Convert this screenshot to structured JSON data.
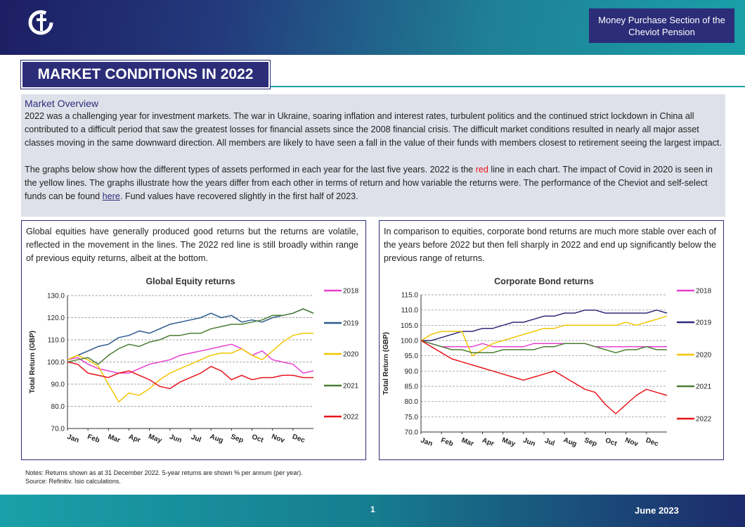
{
  "header": {
    "section": "Money Purchase Section of the Cheviot Pension",
    "title": "MARKET CONDITIONS IN 2022"
  },
  "overview": {
    "heading": "Market Overview",
    "paragraph_1": "2022 was a challenging year for investment markets. The war in Ukraine, soaring inflation and interest rates, turbulent politics and the continued strict lockdown in China all contributed to a difficult period that saw the greatest losses for financial assets since the 2008 financial crisis. The difficult market conditions resulted in nearly all major asset classes moving in the same downward direction. All members are likely to have seen a fall in the value of their funds with members closest to retirement seeing the largest impact.",
    "paragraph_2": [
      "The graphs below show how the different types of assets performed in each year for the last five years. 2022 is the ",
      "red",
      " line in each chart. The impact of Covid in 2020 is seen in the yellow lines. The graphs illustrate how the years differ from each other in terms of return and how variable the returns were. The performance of the Cheviot and self-select funds can be found ",
      "here",
      ". Fund values have recovered slightly in the first half of 2023."
    ]
  },
  "chart_data": [
    {
      "type": "line",
      "description": "Global equities have generally produced good returns but the returns are volatile, reflected in the movement in the lines. The 2022 red line is still broadly within range of previous equity returns, albeit at the bottom.",
      "title": "Global Equity returns",
      "y_label": "Total Return (GBP)",
      "xlim": [
        0,
        12
      ],
      "xticks": [
        {
          "value": 0,
          "label": "Jan"
        },
        {
          "value": 1,
          "label": "Feb"
        },
        {
          "value": 2,
          "label": "Mar"
        },
        {
          "value": 3,
          "label": "Apr"
        },
        {
          "value": 4,
          "label": "May"
        },
        {
          "value": 5,
          "label": "Jun"
        },
        {
          "value": 6,
          "label": "Jul"
        },
        {
          "value": 7,
          "label": "Aug"
        },
        {
          "value": 8,
          "label": "Sep"
        },
        {
          "value": 9,
          "label": "Oct"
        },
        {
          "value": 10,
          "label": "Nov"
        },
        {
          "value": 11,
          "label": "Dec"
        }
      ],
      "x": [
        0,
        0.5,
        1,
        1.5,
        2,
        2.5,
        3,
        3.5,
        4,
        4.5,
        5,
        5.5,
        6,
        6.5,
        7,
        7.5,
        8,
        8.5,
        9,
        9.5,
        10,
        10.5,
        11,
        11.5,
        12
      ],
      "ylim": [
        70,
        130
      ],
      "yticks": [
        {
          "value": 70,
          "label": "70.0"
        },
        {
          "value": 80,
          "label": "80.0"
        },
        {
          "value": 90,
          "label": "90.0"
        },
        {
          "value": 100,
          "label": "100.0"
        },
        {
          "value": 110,
          "label": "110.0"
        },
        {
          "value": 120,
          "label": "120.0"
        },
        {
          "value": 130,
          "label": "130.0"
        }
      ],
      "grid": true,
      "series": [
        {
          "name": "2018",
          "color": "#e83fd0",
          "values": [
            101,
            102,
            99,
            97,
            96,
            95,
            95,
            97,
            99,
            100,
            101,
            103,
            104,
            105,
            106,
            107,
            108,
            106,
            103,
            105,
            101,
            100,
            99,
            95,
            96
          ]
        },
        {
          "name": "2019",
          "color": "#2c5a8c",
          "values": [
            101,
            103,
            105,
            107,
            108,
            111,
            112,
            114,
            113,
            115,
            117,
            118,
            119,
            120,
            122,
            120,
            121,
            118,
            119,
            118,
            120,
            121,
            122,
            124,
            122
          ]
        },
        {
          "name": "2020",
          "color": "#f2c500",
          "values": [
            101,
            103,
            101,
            98,
            90,
            82,
            86,
            85,
            88,
            92,
            95,
            97,
            99,
            101,
            103,
            104,
            104,
            106,
            103,
            101,
            105,
            109,
            112,
            113,
            113
          ]
        },
        {
          "name": "2021",
          "color": "#4a7d33",
          "values": [
            100,
            101,
            102,
            99,
            103,
            106,
            108,
            107,
            109,
            110,
            112,
            112,
            113,
            113,
            115,
            116,
            117,
            117,
            118,
            119,
            121,
            121,
            122,
            124,
            122
          ]
        },
        {
          "name": "2022",
          "color": "#e8141b",
          "values": [
            100,
            99,
            95,
            94,
            93,
            95,
            96,
            94,
            92,
            89,
            88,
            91,
            93,
            95,
            98,
            96,
            92,
            94,
            92,
            93,
            93,
            94,
            94,
            93,
            93
          ]
        }
      ]
    },
    {
      "type": "line",
      "description": "In comparison to equities, corporate bond returns are much more stable over each of the years before 2022 but then fell sharply in 2022 and end up significantly below the previous range of returns.",
      "title": "Corporate Bond returns",
      "y_label": "Total Return (GBP)",
      "xlim": [
        0,
        12
      ],
      "xticks": [
        {
          "value": 0,
          "label": "Jan"
        },
        {
          "value": 1,
          "label": "Feb"
        },
        {
          "value": 2,
          "label": "Mar"
        },
        {
          "value": 3,
          "label": "Apr"
        },
        {
          "value": 4,
          "label": "May"
        },
        {
          "value": 5,
          "label": "Jun"
        },
        {
          "value": 6,
          "label": "Jul"
        },
        {
          "value": 7,
          "label": "Aug"
        },
        {
          "value": 8,
          "label": "Sep"
        },
        {
          "value": 9,
          "label": "Oct"
        },
        {
          "value": 10,
          "label": "Nov"
        },
        {
          "value": 11,
          "label": "Dec"
        }
      ],
      "x": [
        0,
        0.5,
        1,
        1.5,
        2,
        2.5,
        3,
        3.5,
        4,
        4.5,
        5,
        5.5,
        6,
        6.5,
        7,
        7.5,
        8,
        8.5,
        9,
        9.5,
        10,
        10.5,
        11,
        11.5,
        12
      ],
      "ylim": [
        70,
        115
      ],
      "yticks": [
        {
          "value": 70,
          "label": "70.0"
        },
        {
          "value": 75,
          "label": "75.0"
        },
        {
          "value": 80,
          "label": "80.0"
        },
        {
          "value": 85,
          "label": "85.0"
        },
        {
          "value": 90,
          "label": "90.0"
        },
        {
          "value": 95,
          "label": "95.0"
        },
        {
          "value": 100,
          "label": "100.0"
        },
        {
          "value": 105,
          "label": "105.0"
        },
        {
          "value": 110,
          "label": "110.0"
        },
        {
          "value": 115,
          "label": "115.0"
        }
      ],
      "grid": true,
      "series": [
        {
          "name": "2018",
          "color": "#e83fd0",
          "values": [
            100,
            99,
            98,
            98,
            98,
            98,
            99,
            98,
            98,
            98,
            98,
            99,
            99,
            99,
            99,
            99,
            99,
            98,
            98,
            98,
            98,
            98,
            98,
            98,
            98
          ]
        },
        {
          "name": "2019",
          "color": "#2e2a7a",
          "values": [
            100,
            100,
            101,
            102,
            103,
            103,
            104,
            104,
            105,
            106,
            106,
            107,
            108,
            108,
            109,
            109,
            110,
            110,
            109,
            109,
            109,
            109,
            109,
            110,
            109
          ]
        },
        {
          "name": "2020",
          "color": "#f2c500",
          "values": [
            100,
            102,
            103,
            103,
            103,
            95,
            97,
            99,
            100,
            101,
            102,
            103,
            104,
            104,
            105,
            105,
            105,
            105,
            105,
            105,
            106,
            105,
            106,
            107,
            108
          ]
        },
        {
          "name": "2021",
          "color": "#4a7d33",
          "values": [
            100,
            99,
            98,
            97,
            97,
            96,
            96,
            96,
            97,
            97,
            97,
            97,
            98,
            98,
            99,
            99,
            99,
            98,
            97,
            96,
            97,
            97,
            98,
            97,
            97
          ]
        },
        {
          "name": "2022",
          "color": "#e8141b",
          "values": [
            100,
            98,
            96,
            94,
            93,
            92,
            91,
            90,
            89,
            88,
            87,
            88,
            89,
            90,
            88,
            86,
            84,
            83,
            79,
            76,
            79,
            82,
            84,
            83,
            82
          ]
        }
      ]
    }
  ],
  "notes": [
    "Notes: Returns shown as at 31 December 2022. 5-year returns are shown % per annum (per year).",
    "Source: Refinitiv. Isio calculations."
  ],
  "footer": {
    "page": "1",
    "date": "June 2023"
  }
}
